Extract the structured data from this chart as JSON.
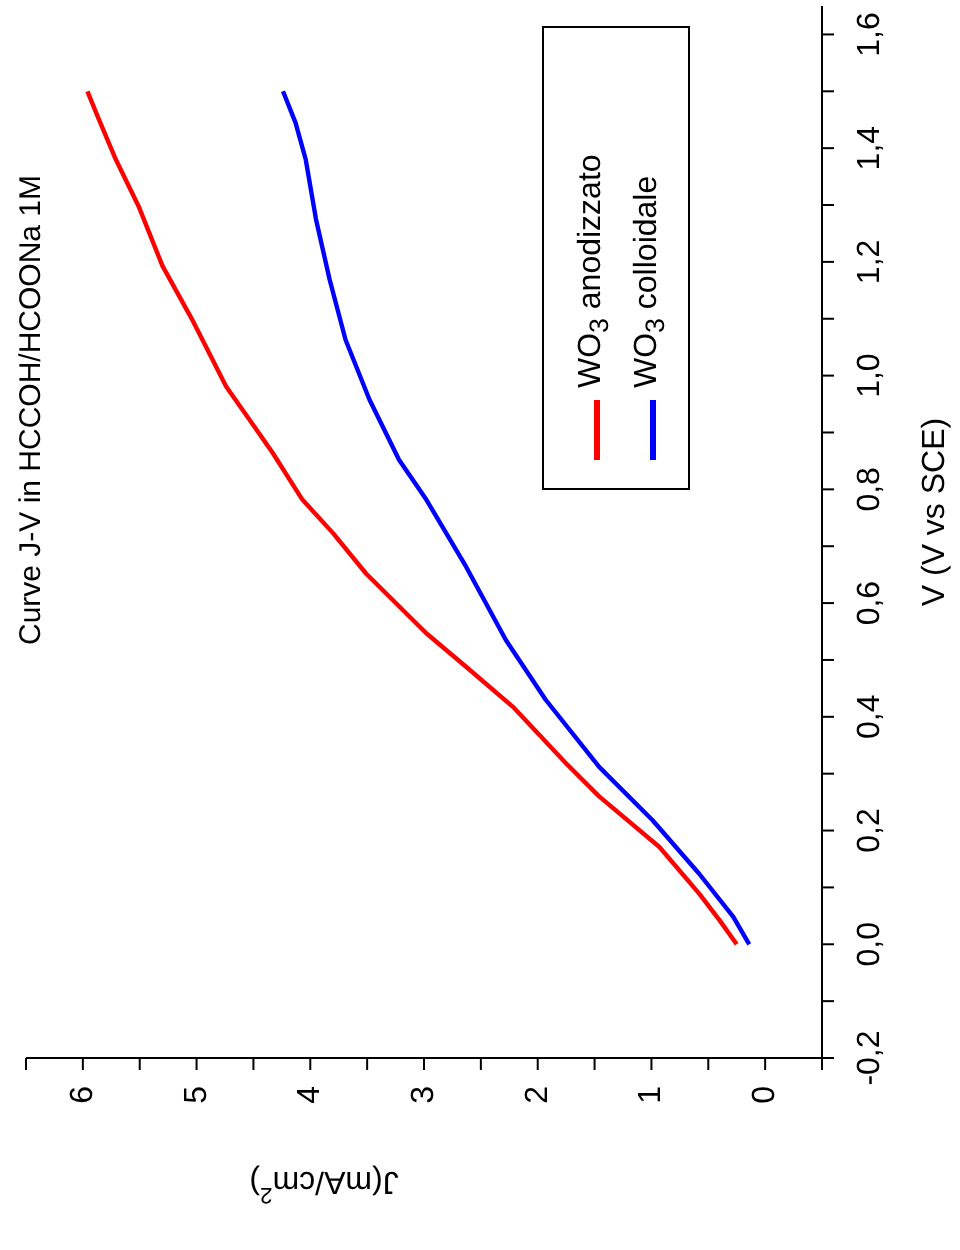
{
  "chart_data": {
    "type": "line",
    "title": "Curve J-V in HCCOH/HCOONa 1M",
    "xlabel": "J(mA/cm$^{2}$)",
    "ylabel": "V (V vs SCE)",
    "xlim": [
      6.5,
      -0.5
    ],
    "ylim": [
      -0.2,
      1.65
    ],
    "xticks": [
      {
        "value": 6.5,
        "label": null
      },
      6,
      {
        "value": 5.5,
        "label": null
      },
      5,
      {
        "value": 4.5,
        "label": null
      },
      4,
      {
        "value": 3.5,
        "label": null
      },
      3,
      {
        "value": 2.5,
        "label": null
      },
      2,
      {
        "value": 1.5,
        "label": null
      },
      1,
      {
        "value": 0.5,
        "label": null
      },
      0,
      {
        "value": -0.5,
        "label": null
      }
    ],
    "yticks": [
      {
        "value": -0.2,
        "label": "-0,2"
      },
      {
        "value": -0.1,
        "label": null
      },
      {
        "value": 0,
        "label": "0,0"
      },
      {
        "value": 0.1,
        "label": null
      },
      {
        "value": 0.2,
        "label": "0,2"
      },
      {
        "value": 0.3,
        "label": null
      },
      {
        "value": 0.4,
        "label": "0,4"
      },
      {
        "value": 0.5,
        "label": null
      },
      {
        "value": 0.6,
        "label": "0,6"
      },
      {
        "value": 0.7,
        "label": null
      },
      {
        "value": 0.8,
        "label": "0,8"
      },
      {
        "value": 0.9,
        "label": null
      },
      {
        "value": 1.0,
        "label": "1,0"
      },
      {
        "value": 1.1,
        "label": null
      },
      {
        "value": 1.2,
        "label": "1,2"
      },
      {
        "value": 1.3,
        "label": null
      },
      {
        "value": 1.4,
        "label": "1,4"
      },
      {
        "value": 1.5,
        "label": null
      },
      {
        "value": 1.6,
        "label": "1,6"
      }
    ],
    "legend": "top right",
    "marker": "none",
    "line_style": "solid",
    "series": [
      {
        "name": "WO$_{3}$ anodizzato",
        "color": "#ff0000",
        "values": [
          0,
          0.042,
          0.089,
          0.171,
          0.26,
          0.318,
          0.418,
          0.488,
          0.547,
          0.652,
          0.723,
          0.782,
          0.864,
          0.981,
          1.099,
          1.193,
          1.298,
          1.38,
          1.451,
          1.5
        ],
        "x": [
          0.25,
          0.4,
          0.58,
          0.93,
          1.46,
          1.75,
          2.22,
          2.63,
          2.98,
          3.51,
          3.8,
          4.07,
          4.33,
          4.74,
          5.04,
          5.3,
          5.51,
          5.71,
          5.86,
          5.96
        ]
      },
      {
        "name": "WO$_{3}$ colloidale",
        "color": "#0000ff",
        "values": [
          0,
          0.048,
          0.124,
          0.218,
          0.312,
          0.43,
          0.535,
          0.664,
          0.782,
          0.852,
          0.958,
          1.063,
          1.169,
          1.275,
          1.38,
          1.445,
          1.5
        ],
        "x": [
          0.14,
          0.28,
          0.58,
          0.99,
          1.46,
          1.93,
          2.28,
          2.63,
          2.98,
          3.22,
          3.48,
          3.69,
          3.83,
          3.95,
          4.04,
          4.13,
          4.24
        ]
      }
    ]
  }
}
